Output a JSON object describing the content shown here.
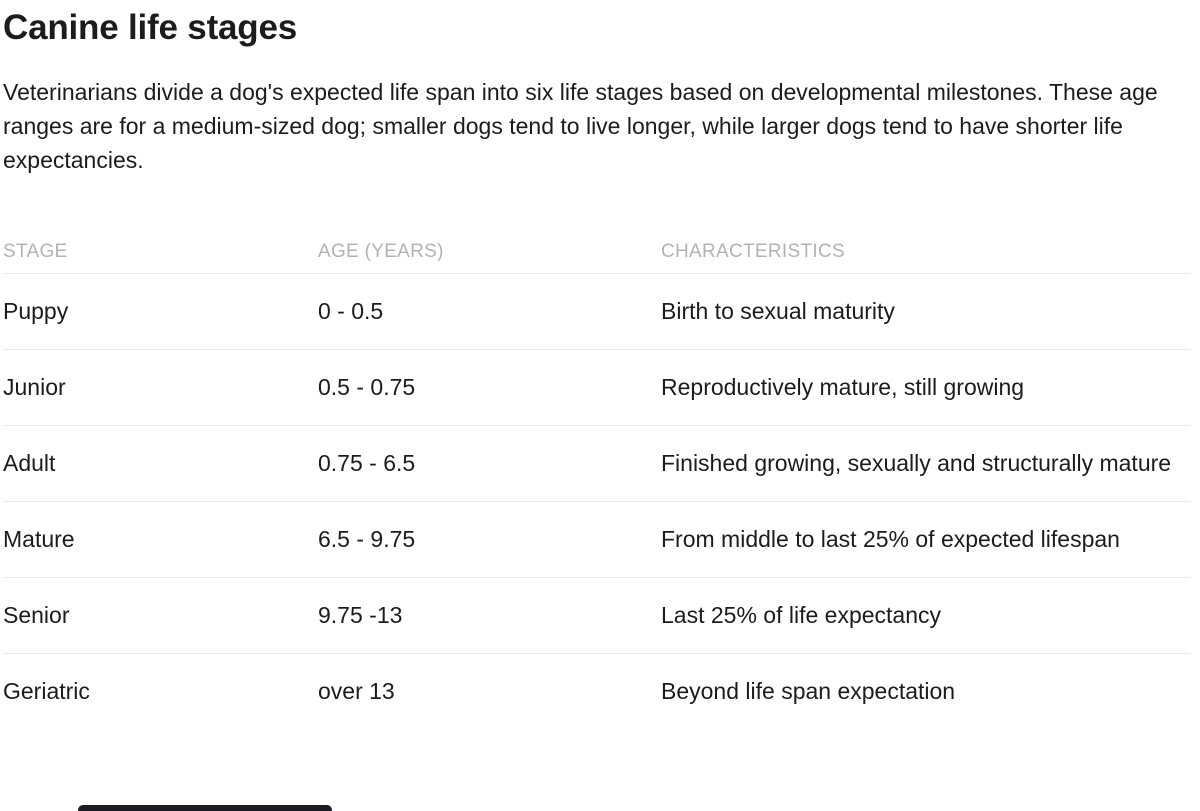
{
  "page": {
    "title": "Canine life stages",
    "intro": "Veterinarians divide a dog's expected life span into six life stages based on developmental milestones. These age ranges are for a medium-sized dog; smaller dogs tend to live longer, while larger dogs tend to have shorter life expectancies."
  },
  "table": {
    "columns": [
      "STAGE",
      "AGE (YEARS)",
      "CHARACTERISTICS"
    ],
    "rows": [
      {
        "stage": "Puppy",
        "age": "0 - 0.5",
        "characteristics": "Birth to sexual maturity"
      },
      {
        "stage": "Junior",
        "age": "0.5 - 0.75",
        "characteristics": "Reproductively mature, still growing"
      },
      {
        "stage": "Adult",
        "age": "0.75 - 6.5",
        "characteristics": "Finished growing, sexually and structurally mature"
      },
      {
        "stage": "Mature",
        "age": "6.5 - 9.75",
        "characteristics": "From middle to last 25% of expected lifespan"
      },
      {
        "stage": "Senior",
        "age": "9.75 -13",
        "characteristics": "Last 25% of life expectancy"
      },
      {
        "stage": "Geriatric",
        "age": "over 13",
        "characteristics": "Beyond life span expectation"
      }
    ]
  },
  "colors": {
    "background": "#ffffff",
    "text": "#1c1c1c",
    "header_gray": "#b3b3b3",
    "divider": "#e9e9e9",
    "scrollbar_thumb": "#1b1b24"
  }
}
